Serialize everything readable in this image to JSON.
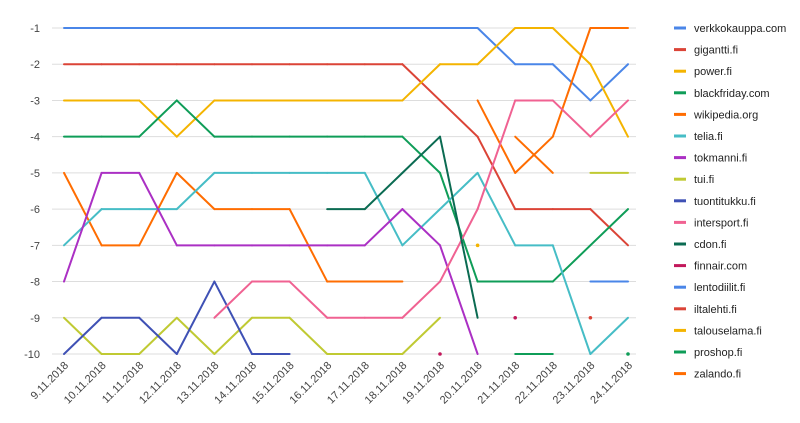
{
  "chart_data": {
    "type": "line",
    "title": "",
    "xlabel": "",
    "ylabel": "",
    "x": [
      "9.11.2018",
      "10.11.2018",
      "11.11.2018",
      "12.11.2018",
      "13.11.2018",
      "14.11.2018",
      "15.11.2018",
      "16.11.2018",
      "17.11.2018",
      "18.11.2018",
      "19.11.2018",
      "20.11.2018",
      "21.11.2018",
      "22.11.2018",
      "23.11.2018",
      "24.11.2018"
    ],
    "ylim": [
      -10,
      -1
    ],
    "yticks": [
      -1,
      -2,
      -3,
      -4,
      -5,
      -6,
      -7,
      -8,
      -9,
      -10
    ],
    "grid": "horizontal",
    "legend_position": "right",
    "series": [
      {
        "name": "verkkokauppa.com",
        "color": "#4a86e8",
        "values": [
          -1,
          -1,
          -1,
          -1,
          -1,
          -1,
          -1,
          -1,
          -1,
          -1,
          -1,
          -1,
          -2,
          -2,
          -3,
          -2
        ]
      },
      {
        "name": "gigantti.fi",
        "color": "#db4437",
        "values": [
          -2,
          -2,
          -2,
          -2,
          -2,
          -2,
          -2,
          -2,
          -2,
          -2,
          -3,
          -4,
          -6,
          -6,
          -6,
          -7
        ]
      },
      {
        "name": "power.fi",
        "color": "#f4b400",
        "values": [
          -3,
          -3,
          -3,
          -4,
          -3,
          -3,
          -3,
          -3,
          -3,
          -3,
          -2,
          -2,
          -1,
          -1,
          -2,
          -4
        ]
      },
      {
        "name": "blackfriday.com",
        "color": "#0f9d58",
        "values": [
          -4,
          -4,
          -4,
          -3,
          -4,
          -4,
          -4,
          -4,
          -4,
          -4,
          -5,
          -8,
          -8,
          -8,
          -7,
          -6
        ]
      },
      {
        "name": "wikipedia.org",
        "color": "#ff6d01",
        "values": [
          -5,
          -7,
          -7,
          -5,
          -6,
          -6,
          -6,
          -8,
          -8,
          -8,
          null,
          -3,
          -5,
          -4,
          -1,
          -1
        ]
      },
      {
        "name": "telia.fi",
        "color": "#46bdc6",
        "values": [
          -7,
          -6,
          -6,
          -6,
          -5,
          -5,
          -5,
          -5,
          -5,
          -7,
          -6,
          -5,
          -7,
          -7,
          -10,
          -9
        ]
      },
      {
        "name": "tokmanni.fi",
        "color": "#ab30c4",
        "values": [
          -8,
          -5,
          -5,
          -7,
          -7,
          -7,
          -7,
          -7,
          -7,
          -6,
          -7,
          -10,
          null,
          null,
          null,
          null
        ]
      },
      {
        "name": "tui.fi",
        "color": "#c0ca33",
        "values": [
          -9,
          -10,
          -10,
          -9,
          -10,
          -9,
          -9,
          -10,
          -10,
          -10,
          -9,
          null,
          null,
          null,
          -5,
          -5
        ]
      },
      {
        "name": "tuontitukku.fi",
        "color": "#3f51b5",
        "values": [
          -10,
          -9,
          -9,
          -10,
          -8,
          -10,
          -10,
          null,
          null,
          null,
          null,
          null,
          null,
          null,
          null,
          null
        ]
      },
      {
        "name": "intersport.fi",
        "color": "#f06292",
        "values": [
          null,
          null,
          null,
          null,
          -9,
          -8,
          -8,
          -9,
          -9,
          -9,
          -8,
          -6,
          -3,
          -3,
          -4,
          -3
        ]
      },
      {
        "name": "cdon.fi",
        "color": "#0b6b52",
        "values": [
          null,
          null,
          null,
          null,
          null,
          null,
          null,
          -6,
          -6,
          -5,
          -4,
          -9,
          null,
          null,
          null,
          null
        ]
      },
      {
        "name": "finnair.com",
        "color": "#c2185b",
        "values": [
          null,
          null,
          null,
          null,
          null,
          null,
          null,
          null,
          null,
          null,
          -10,
          null,
          -9,
          null,
          null,
          null
        ]
      },
      {
        "name": "lentodiilit.fi",
        "color": "#4a86e8",
        "values": [
          null,
          null,
          null,
          null,
          null,
          null,
          null,
          null,
          null,
          null,
          null,
          null,
          null,
          null,
          -8,
          -8
        ]
      },
      {
        "name": "iltalehti.fi",
        "color": "#db4437",
        "values": [
          null,
          null,
          null,
          null,
          null,
          null,
          null,
          null,
          null,
          null,
          null,
          null,
          null,
          null,
          -9,
          null
        ]
      },
      {
        "name": "talouselama.fi",
        "color": "#f4b400",
        "values": [
          null,
          null,
          null,
          null,
          null,
          null,
          null,
          null,
          null,
          null,
          null,
          -7,
          null,
          null,
          null,
          null
        ]
      },
      {
        "name": "proshop.fi",
        "color": "#0f9d58",
        "values": [
          null,
          null,
          null,
          null,
          null,
          null,
          null,
          null,
          null,
          null,
          null,
          null,
          -10,
          -10,
          null,
          -10
        ]
      },
      {
        "name": "zalando.fi",
        "color": "#ff6d01",
        "values": [
          null,
          null,
          null,
          null,
          null,
          null,
          null,
          null,
          null,
          null,
          null,
          null,
          -4,
          -5,
          null,
          null
        ]
      }
    ]
  }
}
